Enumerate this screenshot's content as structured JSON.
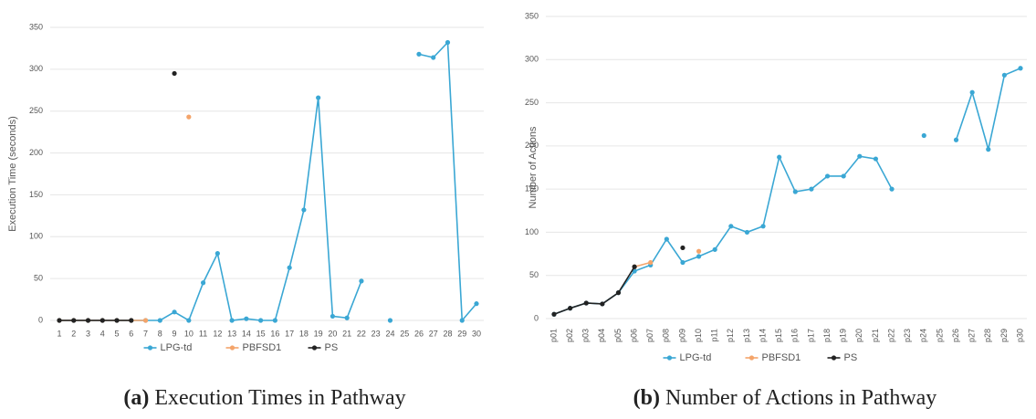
{
  "chart_data": [
    {
      "type": "line",
      "caption_label": "(a)",
      "caption": "Execution Times in Pathway",
      "y_label": "Execution Time (seconds)",
      "categories": [
        "1",
        "2",
        "3",
        "4",
        "5",
        "6",
        "7",
        "8",
        "9",
        "10",
        "11",
        "12",
        "13",
        "14",
        "15",
        "16",
        "17",
        "18",
        "19",
        "20",
        "21",
        "22",
        "23",
        "24",
        "25",
        "26",
        "27",
        "28",
        "29",
        "30"
      ],
      "ylim": [
        0,
        350
      ],
      "yticks": [
        0,
        50,
        100,
        150,
        200,
        250,
        300,
        350
      ],
      "grid": true,
      "series": [
        {
          "name": "LPG-td",
          "color": "#3aa7d4",
          "values": [
            0,
            0,
            0,
            0,
            0,
            0,
            0,
            0,
            10,
            0,
            45,
            80,
            0,
            2,
            0,
            0,
            63,
            132,
            266,
            5,
            3,
            47,
            null,
            0,
            null,
            318,
            314,
            332,
            0,
            20
          ]
        },
        {
          "name": "PBFSD1",
          "color": "#f4a46a",
          "values": [
            0,
            0,
            0,
            0,
            0,
            0,
            0,
            null,
            null,
            243,
            null,
            null,
            null,
            null,
            null,
            null,
            null,
            null,
            null,
            null,
            null,
            null,
            null,
            null,
            null,
            null,
            null,
            null,
            null,
            null
          ]
        },
        {
          "name": "PS",
          "color": "#222222",
          "values": [
            0,
            0,
            0,
            0,
            0,
            0,
            null,
            null,
            295,
            null,
            null,
            null,
            null,
            null,
            null,
            null,
            null,
            null,
            null,
            null,
            null,
            null,
            null,
            null,
            null,
            null,
            null,
            null,
            null,
            null
          ]
        }
      ]
    },
    {
      "type": "line",
      "caption_label": "(b)",
      "caption": "Number of Actions in Pathway",
      "y_label": "Number of Actions",
      "categories": [
        "p01",
        "p02",
        "p03",
        "p04",
        "p05",
        "p06",
        "p07",
        "p08",
        "p09",
        "p10",
        "p11",
        "p12",
        "p13",
        "p14",
        "p15",
        "p16",
        "p17",
        "p18",
        "p19",
        "p20",
        "p21",
        "p22",
        "p23",
        "p24",
        "p25",
        "p26",
        "p27",
        "p28",
        "p29",
        "p30"
      ],
      "ylim": [
        0,
        350
      ],
      "yticks": [
        0,
        50,
        100,
        150,
        200,
        250,
        300,
        350
      ],
      "grid": true,
      "series": [
        {
          "name": "LPG-td",
          "color": "#3aa7d4",
          "values": [
            5,
            12,
            18,
            17,
            30,
            55,
            62,
            92,
            65,
            72,
            80,
            107,
            100,
            107,
            187,
            147,
            150,
            165,
            165,
            188,
            185,
            150,
            null,
            212,
            null,
            207,
            262,
            196,
            282,
            290
          ]
        },
        {
          "name": "PBFSD1",
          "color": "#f4a46a",
          "values": [
            null,
            null,
            null,
            null,
            null,
            60,
            65,
            null,
            null,
            78,
            null,
            null,
            null,
            null,
            null,
            null,
            null,
            null,
            null,
            null,
            null,
            null,
            null,
            null,
            null,
            null,
            null,
            null,
            null,
            null
          ]
        },
        {
          "name": "PS",
          "color": "#222222",
          "values": [
            5,
            12,
            18,
            17,
            30,
            60,
            null,
            null,
            82,
            null,
            null,
            null,
            null,
            null,
            null,
            null,
            null,
            null,
            null,
            null,
            null,
            null,
            null,
            null,
            null,
            null,
            null,
            null,
            null,
            null
          ]
        }
      ]
    }
  ]
}
